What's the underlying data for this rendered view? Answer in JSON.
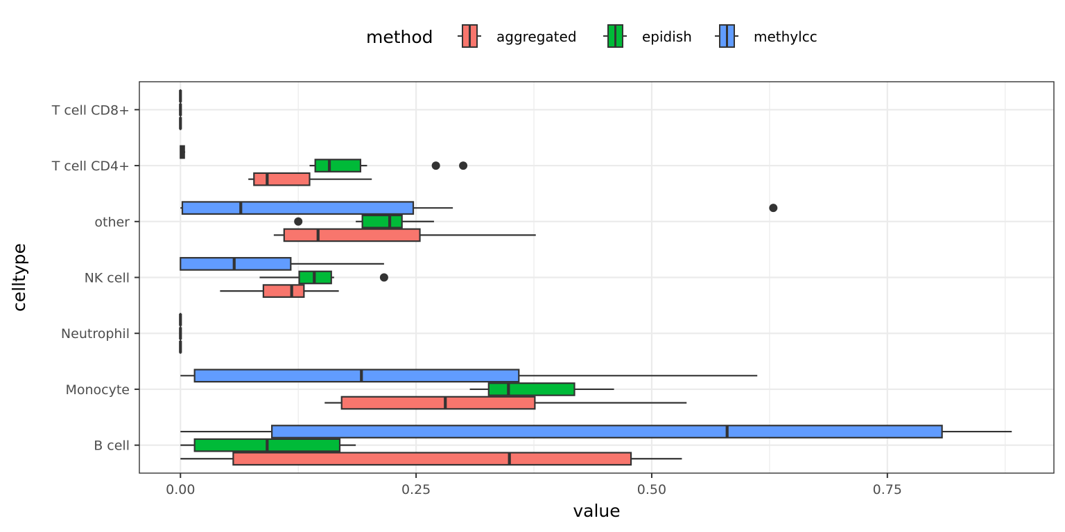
{
  "chart_data": {
    "type": "boxplot",
    "orientation": "horizontal",
    "xlabel": "value",
    "ylabel": "celltype",
    "xlim": [
      -0.0436,
      0.9267
    ],
    "x_ticks": [
      0.0,
      0.25,
      0.5,
      0.75
    ],
    "x_tick_labels": [
      "0.00",
      "0.25",
      "0.50",
      "0.75"
    ],
    "categories": [
      "B cell",
      "Monocyte",
      "Neutrophil",
      "NK cell",
      "other",
      "T cell CD4+",
      "T cell CD8+"
    ],
    "grid": true,
    "legend": {
      "title": "method",
      "position": "top",
      "entries": [
        "aggregated",
        "epidish",
        "methylcc"
      ]
    },
    "series": [
      {
        "name": "aggregated",
        "color": "#F8766D",
        "boxes": [
          {
            "category": "B cell",
            "whisker_low": 0.0,
            "q1": 0.056,
            "median": 0.349,
            "q3": 0.478,
            "whisker_high": 0.532,
            "outliers": []
          },
          {
            "category": "Monocyte",
            "whisker_low": 0.153,
            "q1": 0.171,
            "median": 0.281,
            "q3": 0.376,
            "whisker_high": 0.537,
            "outliers": []
          },
          {
            "category": "NK cell",
            "whisker_low": 0.042,
            "q1": 0.088,
            "median": 0.118,
            "q3": 0.131,
            "whisker_high": 0.168,
            "outliers": []
          },
          {
            "category": "other",
            "whisker_low": 0.099,
            "q1": 0.11,
            "median": 0.146,
            "q3": 0.254,
            "whisker_high": 0.377,
            "outliers": []
          },
          {
            "category": "T cell CD4+",
            "whisker_low": 0.072,
            "q1": 0.078,
            "median": 0.092,
            "q3": 0.137,
            "whisker_high": 0.203,
            "outliers": []
          }
        ]
      },
      {
        "name": "epidish",
        "color": "#00BA38",
        "boxes": [
          {
            "category": "B cell",
            "whisker_low": 0.0,
            "q1": 0.015,
            "median": 0.092,
            "q3": 0.169,
            "whisker_high": 0.186,
            "outliers": []
          },
          {
            "category": "Monocyte",
            "whisker_low": 0.307,
            "q1": 0.327,
            "median": 0.348,
            "q3": 0.418,
            "whisker_high": 0.46,
            "outliers": []
          },
          {
            "category": "NK cell",
            "whisker_low": 0.084,
            "q1": 0.126,
            "median": 0.142,
            "q3": 0.16,
            "whisker_high": 0.163,
            "outliers": [
              0.216
            ]
          },
          {
            "category": "other",
            "whisker_low": 0.186,
            "q1": 0.193,
            "median": 0.222,
            "q3": 0.235,
            "whisker_high": 0.269,
            "outliers": [
              0.125
            ]
          },
          {
            "category": "T cell CD4+",
            "whisker_low": 0.137,
            "q1": 0.143,
            "median": 0.158,
            "q3": 0.191,
            "whisker_high": 0.198,
            "outliers": [
              0.271,
              0.3
            ]
          }
        ]
      },
      {
        "name": "methylcc",
        "color": "#619CFF",
        "boxes": [
          {
            "category": "B cell",
            "whisker_low": 0.0,
            "q1": 0.097,
            "median": 0.58,
            "q3": 0.808,
            "whisker_high": 0.882,
            "outliers": []
          },
          {
            "category": "Monocyte",
            "whisker_low": 0.0,
            "q1": 0.015,
            "median": 0.192,
            "q3": 0.359,
            "whisker_high": 0.612,
            "outliers": []
          },
          {
            "category": "Neutrophil",
            "whisker_low": 0.0,
            "q1": 0.0,
            "median": 0.0,
            "q3": 0.0,
            "whisker_high": 0.0,
            "outliers": []
          },
          {
            "category": "NK cell",
            "whisker_low": 0.0,
            "q1": 0.0,
            "median": 0.057,
            "q3": 0.117,
            "whisker_high": 0.216,
            "outliers": []
          },
          {
            "category": "other",
            "whisker_low": 0.0,
            "q1": 0.002,
            "median": 0.064,
            "q3": 0.247,
            "whisker_high": 0.289,
            "outliers": [
              0.629
            ]
          },
          {
            "category": "T cell CD4+",
            "whisker_low": 0.0,
            "q1": 0.0,
            "median": 0.002,
            "q3": 0.004,
            "whisker_high": 0.005,
            "outliers": []
          },
          {
            "category": "T cell CD8+",
            "whisker_low": 0.0,
            "q1": 0.0,
            "median": 0.0,
            "q3": 0.0,
            "whisker_high": 0.0,
            "outliers": []
          }
        ]
      }
    ],
    "zero_only_boxes": [
      {
        "category": "Neutrophil",
        "methods": [
          "aggregated",
          "epidish"
        ]
      },
      {
        "category": "T cell CD8+",
        "methods": [
          "aggregated",
          "epidish"
        ]
      }
    ]
  }
}
